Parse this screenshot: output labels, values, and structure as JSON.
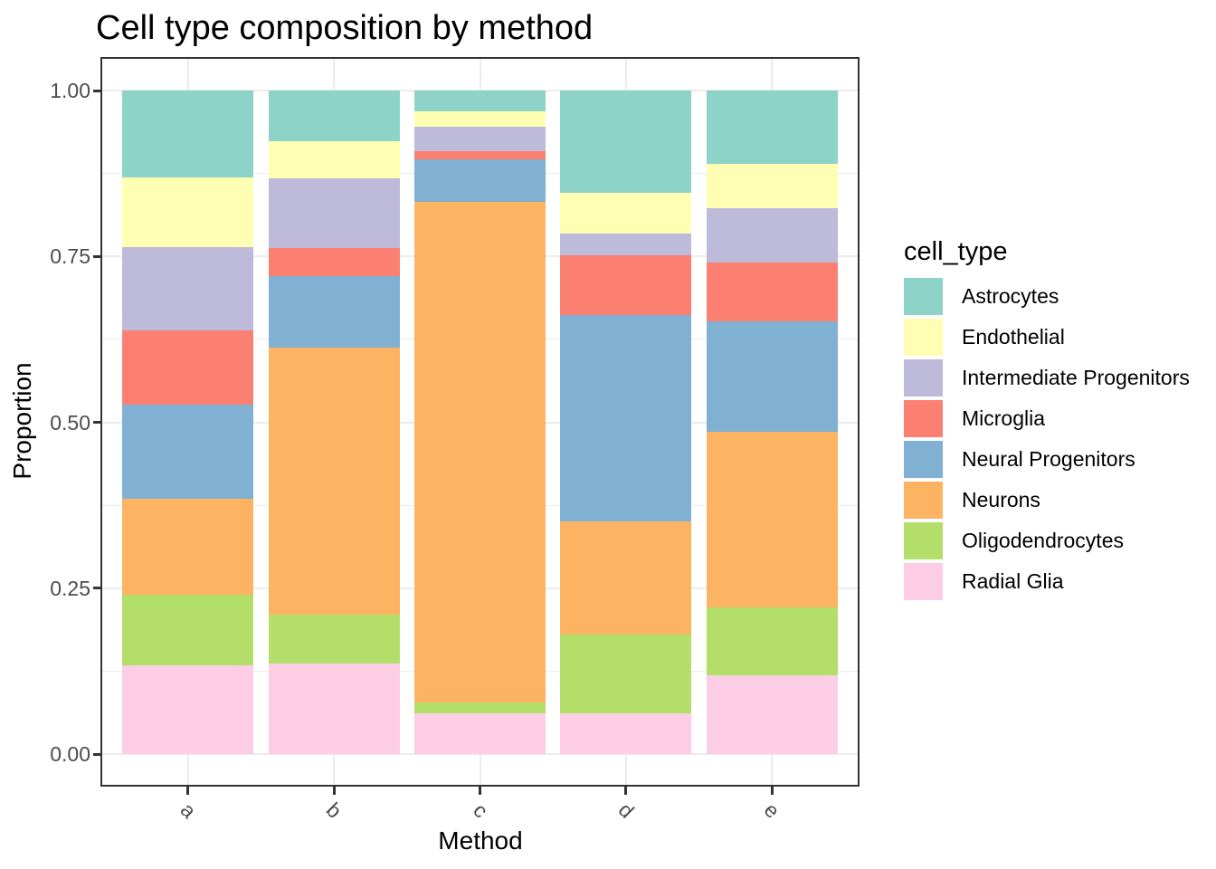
{
  "chart_data": {
    "type": "bar",
    "subtype": "stacked-proportion",
    "title": "Cell type composition by method",
    "xlabel": "Method",
    "ylabel": "Proportion",
    "categories": [
      "a",
      "b",
      "c",
      "d",
      "e"
    ],
    "ylim": [
      0,
      1
    ],
    "y_ticks": [
      "0.00",
      "0.25",
      "0.50",
      "0.75",
      "1.00"
    ],
    "y_tick_values": [
      0,
      0.25,
      0.5,
      0.75,
      1.0
    ],
    "y_minor_values": [
      0.125,
      0.375,
      0.625,
      0.875
    ],
    "grid": "major and minor horizontal gridlines, vertical gridlines at category centers",
    "legend_title": "cell_type",
    "legend_position": "right",
    "stack_note": "stacked bottom-to-top in reverse of series order (Radial Glia at bottom, Astrocytes on top)",
    "series": [
      {
        "name": "Astrocytes",
        "color": "#8DD3C7",
        "values": [
          0.131,
          0.077,
          0.032,
          0.154,
          0.11
        ]
      },
      {
        "name": "Endothelial",
        "color": "#FFFFB3",
        "values": [
          0.105,
          0.055,
          0.022,
          0.061,
          0.068
        ]
      },
      {
        "name": "Intermediate Progenitors",
        "color": "#BEBADA",
        "values": [
          0.125,
          0.105,
          0.038,
          0.033,
          0.081
        ]
      },
      {
        "name": "Microglia",
        "color": "#FB8072",
        "values": [
          0.113,
          0.043,
          0.012,
          0.09,
          0.089
        ]
      },
      {
        "name": "Neural Progenitors",
        "color": "#80B1D3",
        "values": [
          0.141,
          0.107,
          0.064,
          0.312,
          0.166
        ]
      },
      {
        "name": "Neurons",
        "color": "#FDB462",
        "values": [
          0.145,
          0.403,
          0.754,
          0.17,
          0.265
        ]
      },
      {
        "name": "Oligodendrocytes",
        "color": "#B3DE69",
        "values": [
          0.106,
          0.074,
          0.017,
          0.119,
          0.102
        ]
      },
      {
        "name": "Radial Glia",
        "color": "#FCCDE5",
        "values": [
          0.134,
          0.136,
          0.061,
          0.061,
          0.119
        ]
      }
    ]
  },
  "style": {
    "grid_color": "#EBEBEB",
    "panel_border_color": "#333333",
    "tick_mark_color": "#333333",
    "tick_label_color": "#4D4D4D",
    "text_color": "#000000",
    "background_color": "#FFFFFF"
  }
}
